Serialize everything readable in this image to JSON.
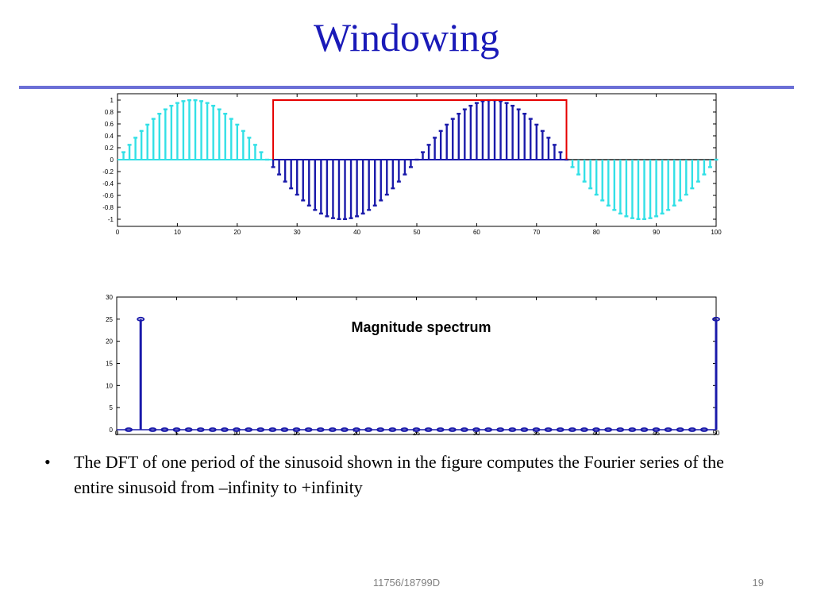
{
  "slide": {
    "title": "Windowing",
    "bullet_marker": "•",
    "bullet_text": "The DFT of one period of the sinusoid shown in the figure computes the Fourier series of the entire sinusoid from –infinity to +infinity",
    "footer_center": "11756/18799D",
    "page_number": "19"
  },
  "colors": {
    "title": "#1a1ab8",
    "rule": "#6b6fd6",
    "inside_window": "#1a1aaa",
    "outside_window": "#33e0e6",
    "window": "#e60000",
    "spectrum": "#1a1aaa"
  },
  "chart_data": [
    {
      "type": "stem",
      "title": "",
      "xlabel": "",
      "ylabel": "",
      "xlim": [
        0,
        100
      ],
      "ylim": [
        -1,
        1
      ],
      "xticks": [
        0,
        10,
        20,
        30,
        40,
        50,
        60,
        70,
        80,
        90,
        100
      ],
      "yticks": [
        -1,
        -0.8,
        -0.6,
        -0.4,
        -0.2,
        0,
        0.2,
        0.4,
        0.6,
        0.8,
        1
      ],
      "ytick_labels": [
        "-1",
        "-0.8",
        "-0.6",
        "-0.4",
        "-0.2",
        "0",
        "0.2",
        "0.4",
        "0.6",
        "0.8",
        "1"
      ],
      "series": [
        {
          "role": "sinusoid",
          "function": "sin(2*pi*n/50)",
          "n_range": [
            1,
            100
          ]
        }
      ],
      "window": {
        "start": 26,
        "end": 75,
        "height": 1
      },
      "grid": false
    },
    {
      "type": "stem",
      "title": "Magnitude spectrum",
      "xlabel": "",
      "ylabel": "",
      "xlim": [
        0,
        50
      ],
      "ylim": [
        0,
        30
      ],
      "xticks": [
        0,
        5,
        10,
        15,
        20,
        25,
        30,
        35,
        40,
        45,
        50
      ],
      "yticks": [
        0,
        5,
        10,
        15,
        20,
        25,
        30
      ],
      "ytick_labels": [
        "0",
        "5",
        "10",
        "15",
        "20",
        "25",
        "30"
      ],
      "bin_range": [
        1,
        50
      ],
      "peaks": [
        {
          "x": 2,
          "y": 25
        },
        {
          "x": 50,
          "y": 25
        }
      ],
      "grid": false
    }
  ]
}
